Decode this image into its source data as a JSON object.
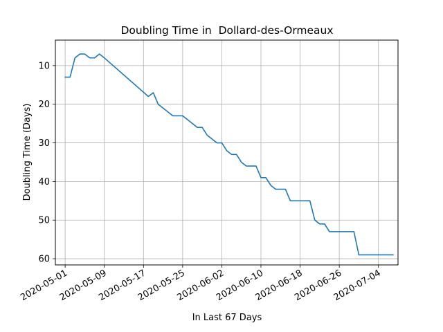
{
  "chart_data": {
    "type": "line",
    "title": "Doubling Time in  Dollard-des-Ormeaux",
    "xlabel": "In Last 67 Days",
    "ylabel": "Doubling Time (Days)",
    "x_type": "date",
    "x_range": [
      "2020-04-29",
      "2020-07-08"
    ],
    "ylim": [
      61.6,
      3.4
    ],
    "y_inverted": true,
    "grid": true,
    "x_ticks": [
      "2020-05-01",
      "2020-05-09",
      "2020-05-17",
      "2020-05-25",
      "2020-06-02",
      "2020-06-10",
      "2020-06-18",
      "2020-06-26",
      "2020-07-04"
    ],
    "y_ticks": [
      10,
      20,
      30,
      40,
      50,
      60
    ],
    "series": [
      {
        "color": "#1f77b4",
        "x": [
          "2020-05-01",
          "2020-05-02",
          "2020-05-03",
          "2020-05-04",
          "2020-05-05",
          "2020-05-06",
          "2020-05-07",
          "2020-05-08",
          "2020-05-09",
          "2020-05-18",
          "2020-05-19",
          "2020-05-20",
          "2020-05-21",
          "2020-05-22",
          "2020-05-23",
          "2020-05-24",
          "2020-05-25",
          "2020-05-26",
          "2020-05-27",
          "2020-05-28",
          "2020-05-29",
          "2020-05-30",
          "2020-05-31",
          "2020-06-01",
          "2020-06-02",
          "2020-06-03",
          "2020-06-04",
          "2020-06-05",
          "2020-06-06",
          "2020-06-07",
          "2020-06-08",
          "2020-06-09",
          "2020-06-10",
          "2020-06-11",
          "2020-06-12",
          "2020-06-13",
          "2020-06-14",
          "2020-06-15",
          "2020-06-16",
          "2020-06-17",
          "2020-06-18",
          "2020-06-19",
          "2020-06-20",
          "2020-06-21",
          "2020-06-22",
          "2020-06-23",
          "2020-06-24",
          "2020-06-25",
          "2020-06-26",
          "2020-06-27",
          "2020-06-28",
          "2020-06-29",
          "2020-06-30",
          "2020-07-01",
          "2020-07-02",
          "2020-07-03",
          "2020-07-04",
          "2020-07-05",
          "2020-07-06",
          "2020-07-07"
        ],
        "y": [
          13,
          13,
          8,
          7,
          7,
          8,
          8,
          7,
          8,
          18,
          17,
          20,
          21,
          22,
          23,
          23,
          23,
          24,
          25,
          26,
          26,
          28,
          29,
          30,
          30,
          32,
          33,
          33,
          35,
          36,
          36,
          36,
          39,
          39,
          41,
          42,
          42,
          42,
          45,
          45,
          45,
          45,
          45,
          50,
          51,
          51,
          53,
          53,
          53,
          53,
          53,
          53,
          59,
          59,
          59,
          59,
          59,
          59,
          59,
          59
        ]
      }
    ]
  }
}
